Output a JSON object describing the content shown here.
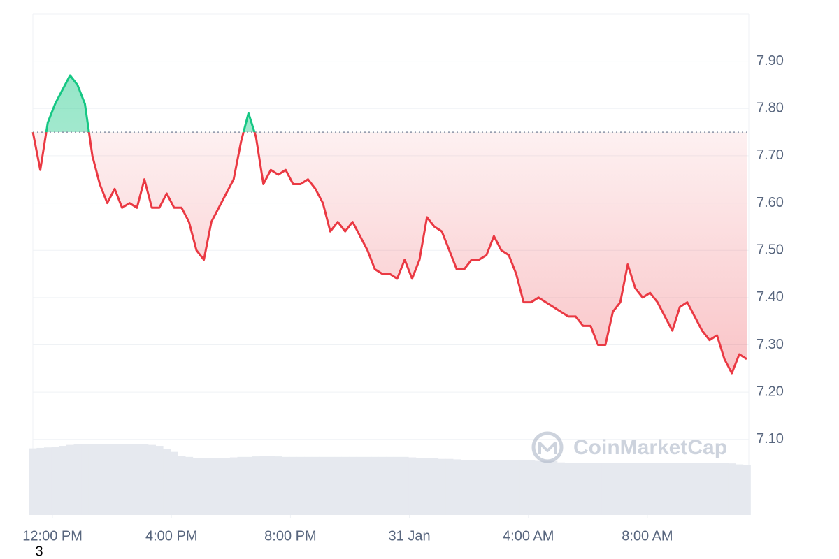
{
  "chart_data": {
    "type": "line",
    "baseline": 7.75,
    "up_color": "#16c784",
    "down_color": "#ea3943",
    "volume_color": "#e6e9ef",
    "watermark": "CoinMarketCap",
    "footnote": "3",
    "xlim": [
      0,
      96
    ],
    "xticks": [
      {
        "value": 2.64,
        "label": "12:00 PM"
      },
      {
        "value": 18.64,
        "label": "4:00 PM"
      },
      {
        "value": 34.64,
        "label": "8:00 PM"
      },
      {
        "value": 50.64,
        "label": "31 Jan"
      },
      {
        "value": 66.64,
        "label": "4:00 AM"
      },
      {
        "value": 82.64,
        "label": "8:00 AM"
      }
    ],
    "ylim": [
      6.94,
      8.0
    ],
    "yticks": [
      {
        "value": 7.1,
        "label": "7.10"
      },
      {
        "value": 7.2,
        "label": "7.20"
      },
      {
        "value": 7.3,
        "label": "7.30"
      },
      {
        "value": 7.4,
        "label": "7.40"
      },
      {
        "value": 7.5,
        "label": "7.50"
      },
      {
        "value": 7.6,
        "label": "7.60"
      },
      {
        "value": 7.7,
        "label": "7.70"
      },
      {
        "value": 7.8,
        "label": "7.80"
      },
      {
        "value": 7.9,
        "label": "7.90"
      }
    ],
    "y2lim": [
      0,
      1000
    ],
    "grid": true,
    "series": [
      {
        "name": "Price",
        "values": [
          7.75,
          7.67,
          7.77,
          7.81,
          7.84,
          7.87,
          7.85,
          7.81,
          7.7,
          7.64,
          7.6,
          7.63,
          7.59,
          7.6,
          7.59,
          7.65,
          7.59,
          7.59,
          7.62,
          7.59,
          7.59,
          7.56,
          7.5,
          7.48,
          7.56,
          7.59,
          7.62,
          7.65,
          7.73,
          7.79,
          7.74,
          7.64,
          7.67,
          7.66,
          7.67,
          7.64,
          7.64,
          7.65,
          7.63,
          7.6,
          7.54,
          7.56,
          7.54,
          7.56,
          7.53,
          7.5,
          7.46,
          7.45,
          7.45,
          7.44,
          7.48,
          7.44,
          7.48,
          7.57,
          7.55,
          7.54,
          7.5,
          7.46,
          7.46,
          7.48,
          7.48,
          7.49,
          7.53,
          7.5,
          7.49,
          7.45,
          7.39,
          7.39,
          7.4,
          7.39,
          7.38,
          7.37,
          7.36,
          7.36,
          7.34,
          7.34,
          7.3,
          7.3,
          7.37,
          7.39,
          7.47,
          7.42,
          7.4,
          7.41,
          7.39,
          7.36,
          7.33,
          7.38,
          7.39,
          7.36,
          7.33,
          7.31,
          7.32,
          7.27,
          7.24,
          7.28,
          7.27
        ]
      },
      {
        "name": "Volume",
        "axis": "y2",
        "values": [
          133,
          134,
          135,
          136,
          138,
          140,
          141,
          141,
          141,
          141,
          141,
          141,
          141,
          141,
          141,
          141,
          140,
          138,
          132,
          126,
          118,
          116,
          114,
          114,
          114,
          114,
          114,
          115,
          116,
          116,
          117,
          118,
          118,
          117,
          116,
          116,
          116,
          116,
          116,
          116,
          116,
          116,
          116,
          116,
          116,
          116,
          116,
          116,
          116,
          116,
          116,
          115,
          114,
          113,
          113,
          112,
          112,
          111,
          110,
          110,
          110,
          109,
          109,
          109,
          109,
          109,
          109,
          109,
          108,
          108,
          108,
          105,
          104,
          104,
          104,
          104,
          104,
          104,
          104,
          104,
          104,
          104,
          104,
          104,
          104,
          104,
          104,
          104,
          104,
          104,
          104,
          104,
          104,
          104,
          103,
          101,
          100
        ]
      }
    ]
  }
}
